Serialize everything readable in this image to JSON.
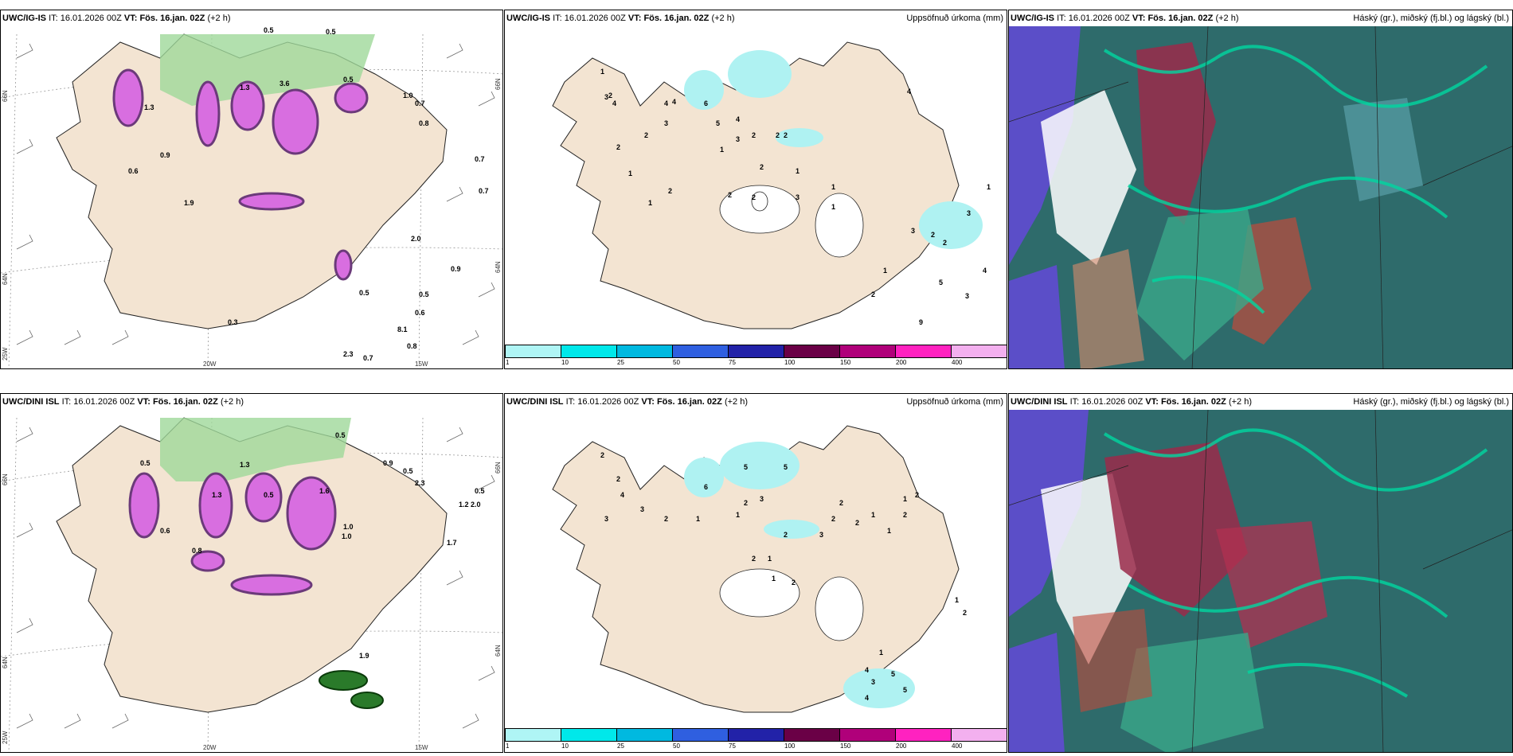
{
  "rows": [
    {
      "model": "UWC/IG-IS",
      "it_label": "IT:",
      "it": "16.01.2026 00Z",
      "vt_label": "VT:",
      "vt": "Fös. 16.jan. 02Z",
      "lead": "(+2 h)",
      "wind_labels": [
        "0.5",
        "0.5",
        "1.3",
        "3.6",
        "0.9",
        "1.3",
        "0.6",
        "0.5",
        "0.7",
        "0.8",
        "1.0",
        "0.7",
        "0.7",
        "2.0",
        "0.9",
        "0.5",
        "0.6",
        "8.1",
        "0.8",
        "2.3",
        "0.7",
        "1.9",
        "0.5",
        "0.3"
      ],
      "precip_labels": [
        "1",
        "2",
        "4",
        "3",
        "4",
        "4",
        "3",
        "6",
        "5",
        "4",
        "2",
        "2",
        "3",
        "2",
        "2",
        "2",
        "1",
        "1",
        "2",
        "1",
        "1",
        "2",
        "1",
        "2",
        "2",
        "3",
        "1",
        "3",
        "2",
        "2",
        "4",
        "5",
        "3",
        "2",
        "9",
        "1",
        "1",
        "3",
        "4"
      ]
    },
    {
      "model": "UWC/DINI ISL",
      "it_label": "IT:",
      "it": "16.01.2026 00Z",
      "vt_label": "VT:",
      "vt": "Fös. 16.jan. 02Z",
      "lead": "(+2 h)",
      "wind_labels": [
        "0.5",
        "1.3",
        "0.5",
        "1.0",
        "1.6",
        "0.5",
        "2.3",
        "0.6",
        "0.5",
        "1.2",
        "2.0",
        "1.0",
        "1.9",
        "1.7",
        "0.9",
        "0.5",
        "0.8",
        "1.3"
      ],
      "precip_labels": [
        "2",
        "2",
        "4",
        "3",
        "3",
        "6",
        "5",
        "5",
        "2",
        "1",
        "2",
        "1",
        "3",
        "2",
        "2",
        "2",
        "3",
        "2",
        "1",
        "2",
        "1",
        "1",
        "2",
        "1",
        "1",
        "2",
        "2",
        "4",
        "3",
        "5",
        "4",
        "5",
        "1",
        "1",
        "2"
      ]
    }
  ],
  "precip_panel_title": "Uppsöfnuð úrkoma (mm)",
  "cloud_panel_title": "Háský (gr.), miðský (fj.bl.) og lágský (bl.)",
  "colorbar": {
    "ticks": [
      "1",
      "10",
      "25",
      "50",
      "75",
      "100",
      "150",
      "200",
      "400"
    ],
    "colors": [
      "#aff5f5",
      "#00e8ea",
      "#00b9e0",
      "#2f5fe0",
      "#2222a8",
      "#6a0046",
      "#b0007a",
      "#ff22c0",
      "#f3b0ef"
    ]
  },
  "axis_labels": {
    "lat_top": "66N",
    "lat_mid": "64N",
    "lat_right_top": "66N",
    "lat_right_mid": "64N",
    "lon_left": "25W",
    "lon_mid": "20W",
    "lon_right": "15W"
  },
  "colors": {
    "land": "#f3e4d2",
    "coast": "#222222",
    "snow_magenta": "#d86ee0",
    "snow_dark": "#6b3a7a",
    "precip_green": "#9fd89a",
    "precip_light": "#aff2f2",
    "cloud_sea": "#2e6b6b",
    "cloud_blue": "#5b4ec8"
  }
}
